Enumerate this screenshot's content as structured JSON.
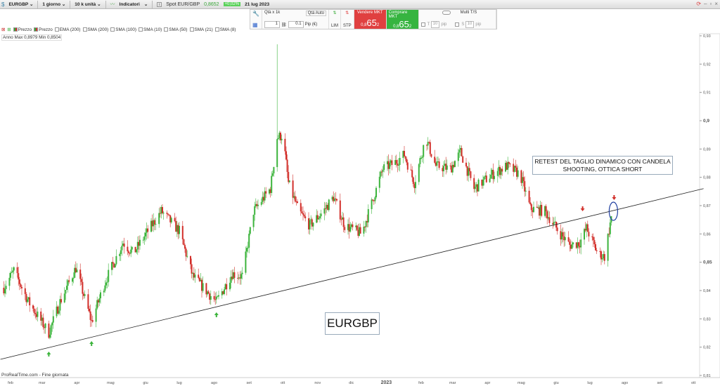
{
  "toolbar": {
    "symbol": "EURGBP ⌄",
    "timeframe": "1 giorno ⌄",
    "size": "10 k unità ⌄",
    "indicators": "Indicatori",
    "indicators_caret": "⌄",
    "spot_label": "Spot EUR/GBP",
    "spot_value": "0,8652",
    "spot_change": "+0,02%",
    "date": "21 lug 2023"
  },
  "trade": {
    "qty_label": "Qtà x 1k",
    "qty_auto": "Qtà Auto",
    "qty_value": "1",
    "pip_value": "0.1",
    "pip_unit": "Pip (€)",
    "lim": "LIM",
    "stp": "STP",
    "sell_label": "Vendere MKT",
    "sell_prefix": "0,8",
    "sell_big": "65",
    "sell_sup": "2",
    "buy_label": "Comprare MKT",
    "buy_prefix": "0,8",
    "buy_big": "65",
    "buy_sup": "2",
    "multi": "Multi T/S",
    "t_label": "T",
    "t_value": "10",
    "s_label": "S",
    "s_value": "10",
    "pip": "pip"
  },
  "indicators": {
    "items": [
      "Prezzo",
      "Prezzo",
      "EMA (200)",
      "SMA (200)",
      "SMA (100)",
      "SMA (10)",
      "SMA (50)",
      "SMA (21)",
      "SMA (8)"
    ]
  },
  "range_text": "Anno Max 0,8979 Min 0,8504",
  "footer": "ProRealTime.com - Fine giornata",
  "annotations": {
    "note": "RETEST DEL TAGLIO DINAMICO CON CANDELA SHOOTING, OTTICA SHORT",
    "ticker": "EURGBP"
  },
  "colors": {
    "up": "#3cb43c",
    "down": "#d22f2a",
    "trendline": "#222222",
    "ellipse": "#1f3fa0"
  },
  "chart_data": {
    "type": "candlestick",
    "instrument": "EURGBP",
    "ylim": [
      0.81,
      0.93
    ],
    "yticks": [
      "0,93",
      "0,92",
      "0,91",
      "0,9",
      "0,89",
      "0,88",
      "0,87",
      "0,86",
      "0,85",
      "0,84",
      "0,83",
      "0,82",
      "0,81"
    ],
    "xticks": [
      "feb",
      "mar",
      "apr",
      "mag",
      "giu",
      "lug",
      "ago",
      "set",
      "ott",
      "nov",
      "dic",
      "2023",
      "feb",
      "mar",
      "apr",
      "mag",
      "giu",
      "lug",
      "ago",
      "set",
      "ott"
    ],
    "approx_closes": [
      [
        "2022-01-26",
        0.841
      ],
      [
        "2022-02-04",
        0.847
      ],
      [
        "2022-02-17",
        0.836
      ],
      [
        "2022-03-07",
        0.825
      ],
      [
        "2022-03-17",
        0.836
      ],
      [
        "2022-03-31",
        0.848
      ],
      [
        "2022-04-14",
        0.829
      ],
      [
        "2022-04-26",
        0.843
      ],
      [
        "2022-05-12",
        0.857
      ],
      [
        "2022-05-21",
        0.853
      ],
      [
        "2022-06-03",
        0.861
      ],
      [
        "2022-06-15",
        0.868
      ],
      [
        "2022-07-01",
        0.861
      ],
      [
        "2022-07-13",
        0.845
      ],
      [
        "2022-08-03",
        0.836
      ],
      [
        "2022-08-17",
        0.846
      ],
      [
        "2022-08-26",
        0.845
      ],
      [
        "2022-09-05",
        0.868
      ],
      [
        "2022-09-20",
        0.876
      ],
      [
        "2022-09-26",
        0.894
      ],
      [
        "2022-10-01",
        0.895
      ],
      [
        "2022-10-06",
        0.878
      ],
      [
        "2022-10-15",
        0.868
      ],
      [
        "2022-10-25",
        0.863
      ],
      [
        "2022-11-06",
        0.868
      ],
      [
        "2022-11-15",
        0.873
      ],
      [
        "2022-11-25",
        0.863
      ],
      [
        "2022-12-10",
        0.86
      ],
      [
        "2022-12-20",
        0.872
      ],
      [
        "2022-12-29",
        0.883
      ],
      [
        "2023-01-08",
        0.885
      ],
      [
        "2023-01-17",
        0.888
      ],
      [
        "2023-01-26",
        0.878
      ],
      [
        "2023-02-05",
        0.894
      ],
      [
        "2023-02-14",
        0.884
      ],
      [
        "2023-02-27",
        0.883
      ],
      [
        "2023-03-08",
        0.889
      ],
      [
        "2023-03-20",
        0.876
      ],
      [
        "2023-04-05",
        0.881
      ],
      [
        "2023-04-18",
        0.884
      ],
      [
        "2023-04-30",
        0.881
      ],
      [
        "2023-05-09",
        0.869
      ],
      [
        "2023-05-22",
        0.868
      ],
      [
        "2023-06-03",
        0.861
      ],
      [
        "2023-06-13",
        0.856
      ],
      [
        "2023-06-22",
        0.857
      ],
      [
        "2023-06-28",
        0.862
      ],
      [
        "2023-07-08",
        0.853
      ],
      [
        "2023-07-14",
        0.852
      ],
      [
        "2023-07-20",
        0.866
      ]
    ],
    "spike": {
      "date": "2022-09-26",
      "high": 0.927
    },
    "trendline": [
      [
        "2022-01-23",
        0.8157
      ],
      [
        "2023-10-10",
        0.876
      ]
    ],
    "buy_arrows": [
      "2022-03-07",
      "2022-04-14",
      "2022-08-03"
    ],
    "sell_arrows": [
      "2023-06-22",
      "2023-07-20"
    ]
  }
}
